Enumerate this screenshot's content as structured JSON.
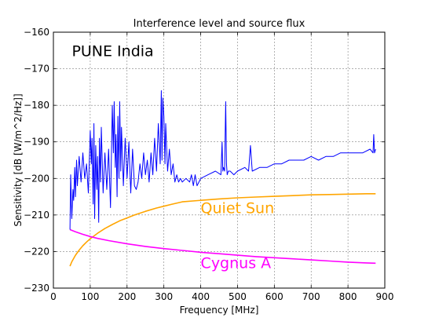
{
  "chart_data": {
    "type": "line",
    "title": "Interference level and source flux",
    "xlabel": "Frequency [MHz]",
    "ylabel": "Sensitivity [dB [W/m^2/Hz]]",
    "xlim": [
      0,
      900
    ],
    "ylim": [
      -230,
      -160
    ],
    "x_ticks": [
      "0",
      "100",
      "200",
      "300",
      "400",
      "500",
      "600",
      "700",
      "800",
      "900"
    ],
    "y_ticks": [
      "−160",
      "−170",
      "−180",
      "−190",
      "−200",
      "−210",
      "−220",
      "−230"
    ],
    "grid": true,
    "annotations": [
      {
        "text": "PUNE India",
        "color": "#000000",
        "x": 50,
        "y": -166.5
      },
      {
        "text": "Quiet Sun",
        "color": "#ffa500",
        "x": 400,
        "y": -209.5
      },
      {
        "text": "Cygnus A",
        "color": "#ff00ff",
        "x": 400,
        "y": -224.5
      }
    ],
    "series": [
      {
        "name": "Quiet Sun",
        "color": "#ffa500",
        "x": [
          45,
          50,
          60,
          70,
          80,
          90,
          100,
          120,
          140,
          160,
          180,
          200,
          220,
          250,
          280,
          300,
          320,
          350,
          400,
          450,
          500,
          550,
          600,
          650,
          700,
          750,
          800,
          850,
          875
        ],
        "y": [
          -224.0,
          -222.8,
          -221.0,
          -219.6,
          -218.4,
          -217.4,
          -216.5,
          -215.0,
          -213.7,
          -212.6,
          -211.6,
          -210.8,
          -210.0,
          -209.0,
          -208.1,
          -207.6,
          -207.1,
          -206.4,
          -206.0,
          -205.6,
          -205.3,
          -205.1,
          -204.9,
          -204.7,
          -204.5,
          -204.4,
          -204.3,
          -204.2,
          -204.2
        ]
      },
      {
        "name": "Cygnus A",
        "color": "#ff00ff",
        "x": [
          45,
          60,
          80,
          100,
          120,
          150,
          200,
          250,
          300,
          350,
          400,
          450,
          500,
          550,
          600,
          650,
          700,
          750,
          800,
          850,
          875
        ],
        "y": [
          -214.0,
          -214.6,
          -215.3,
          -215.9,
          -216.4,
          -217.0,
          -217.9,
          -218.6,
          -219.2,
          -219.7,
          -220.2,
          -220.6,
          -221.0,
          -221.4,
          -221.7,
          -222.0,
          -222.3,
          -222.6,
          -222.9,
          -223.1,
          -223.2
        ]
      },
      {
        "name": "Interference level",
        "color": "#0000ff",
        "x": [
          45,
          47,
          50,
          53,
          55,
          58,
          60,
          63,
          65,
          70,
          75,
          80,
          85,
          90,
          95,
          100,
          103,
          105,
          108,
          110,
          112,
          115,
          118,
          120,
          123,
          125,
          128,
          130,
          135,
          140,
          145,
          150,
          155,
          160,
          163,
          165,
          168,
          170,
          173,
          175,
          178,
          180,
          183,
          185,
          190,
          195,
          200,
          205,
          210,
          215,
          220,
          225,
          230,
          235,
          240,
          245,
          250,
          255,
          260,
          265,
          270,
          275,
          280,
          285,
          290,
          293,
          295,
          297,
          300,
          303,
          305,
          310,
          315,
          320,
          325,
          330,
          335,
          340,
          345,
          350,
          360,
          370,
          375,
          380,
          385,
          390,
          400,
          420,
          440,
          455,
          458,
          460,
          462,
          465,
          468,
          470,
          472,
          475,
          480,
          490,
          500,
          520,
          530,
          535,
          540,
          560,
          580,
          600,
          620,
          640,
          660,
          680,
          700,
          720,
          740,
          760,
          780,
          800,
          820,
          840,
          860,
          868,
          870,
          872,
          875
        ],
        "y": [
          -214,
          -199,
          -211,
          -203,
          -206,
          -197,
          -205,
          -195,
          -202,
          -194,
          -201,
          -193,
          -200,
          -196,
          -204,
          -187,
          -196,
          -189,
          -207,
          -185,
          -211,
          -191,
          -203,
          -194,
          -212,
          -189,
          -201,
          -186,
          -204,
          -193,
          -203,
          -192,
          -208,
          -180,
          -193,
          -179,
          -197,
          -188,
          -205,
          -183,
          -200,
          -179,
          -198,
          -186,
          -202,
          -189,
          -200,
          -190,
          -204,
          -192,
          -202,
          -203,
          -201,
          -196,
          -200,
          -193,
          -199,
          -195,
          -201,
          -193,
          -199,
          -189,
          -198,
          -185,
          -196,
          -176,
          -195,
          -178,
          -183,
          -196,
          -185,
          -198,
          -192,
          -199,
          -196,
          -201,
          -199,
          -201,
          -200,
          -201,
          -200,
          -201,
          -199,
          -202,
          -199,
          -202,
          -200,
          -199,
          -198,
          -199,
          -190,
          -198,
          -197,
          -198,
          -179,
          -196,
          -199,
          -198,
          -198,
          -199,
          -198,
          -197,
          -198,
          -191,
          -198,
          -197,
          -197,
          -196,
          -196,
          -195,
          -195,
          -195,
          -194,
          -195,
          -194,
          -194,
          -193,
          -193,
          -193,
          -193,
          -192,
          -193,
          -188,
          -193,
          -192
        ]
      }
    ]
  }
}
